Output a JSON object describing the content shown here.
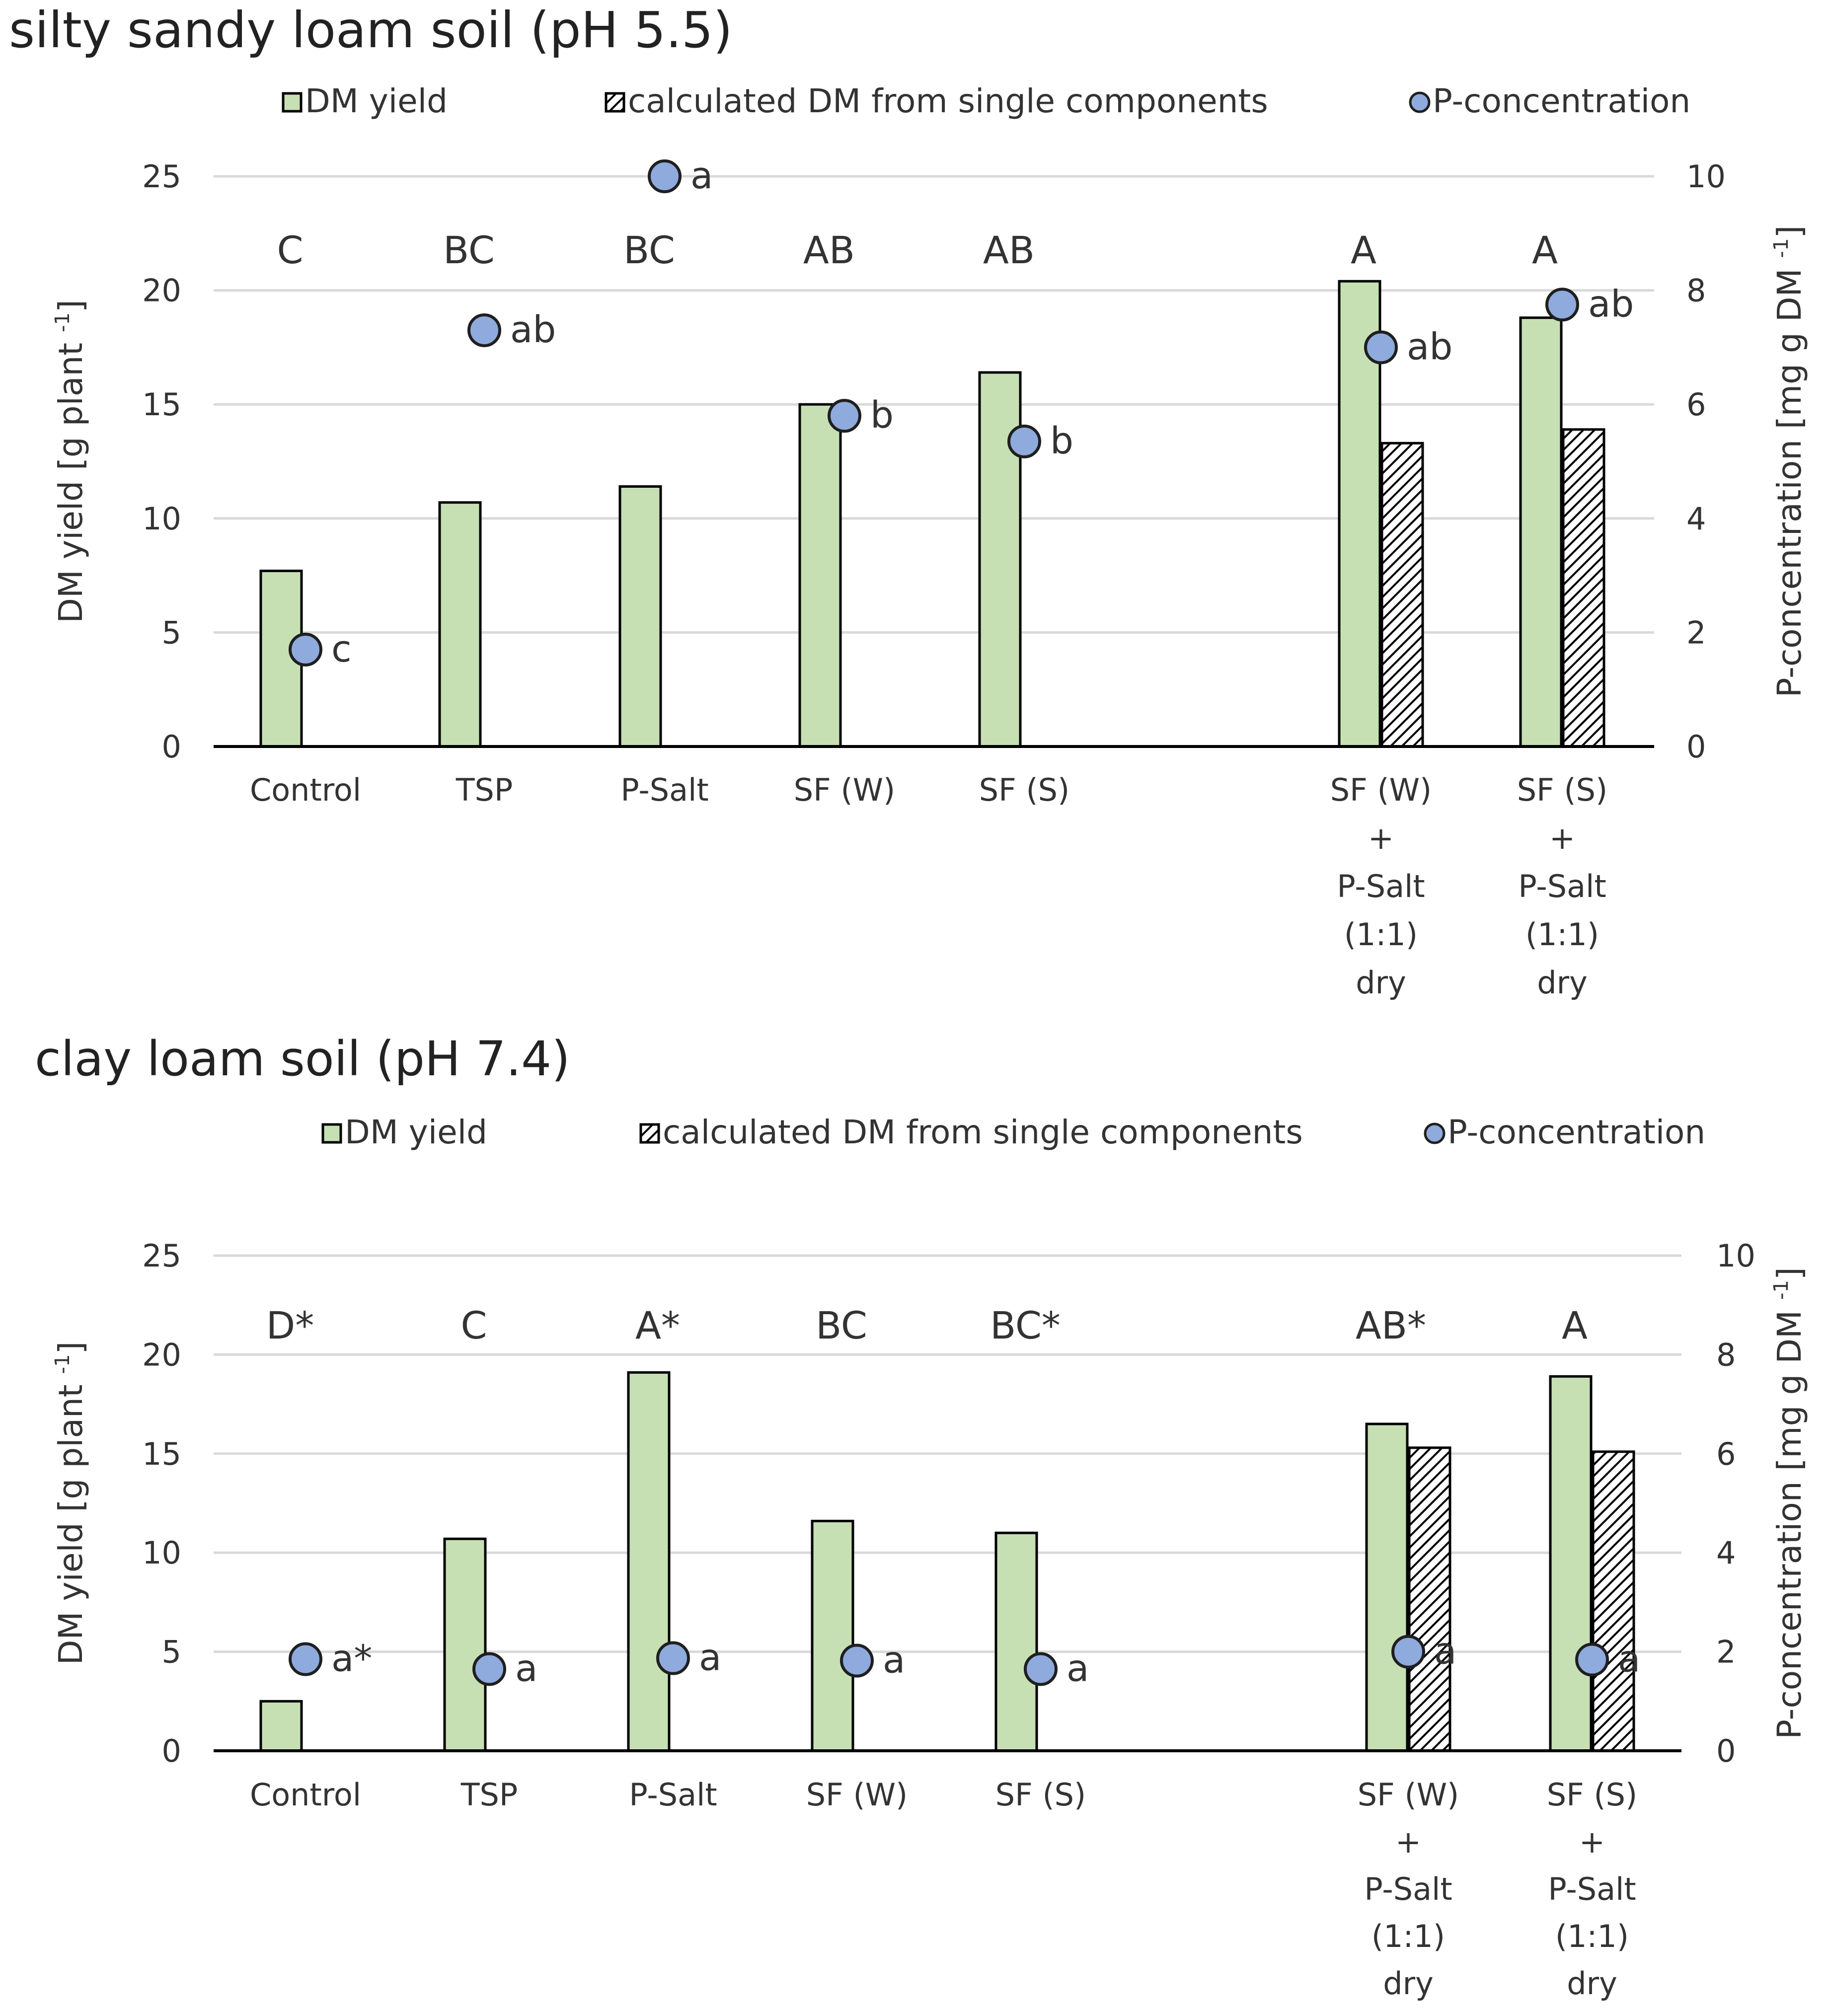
{
  "colors": {
    "bar": "#c6e0b4",
    "bar_stroke": "#000000",
    "hatch": "#000000",
    "point": "#8faadc",
    "grid": "#d9d9d9",
    "text": "#333333"
  },
  "chart_data": [
    {
      "type": "bar",
      "title": "silty sandy loam soil (pH 5.5)",
      "legend": {
        "position": "top",
        "entries": [
          "DM yield",
          "calculated DM from single components",
          "P-concentration"
        ]
      },
      "ylabel": "DM yield [g plant",
      "ylabel_sup": "-1",
      "ylabel_end": "]",
      "y2label": "P-concentration [mg g DM",
      "y2label_sup": "-1",
      "y2label_end": "]",
      "ylim": [
        0,
        25
      ],
      "y2lim": [
        0,
        10
      ],
      "yticks": [
        "0",
        "5",
        "10",
        "15",
        "20",
        "25"
      ],
      "y2ticks": [
        "0",
        "2",
        "4",
        "6",
        "8",
        "10"
      ],
      "grid": true,
      "categories": [
        [
          "Control"
        ],
        [
          "TSP"
        ],
        [
          "P-Salt"
        ],
        [
          "SF (W)"
        ],
        [
          "SF (S)"
        ],
        [
          "SF (W)",
          "+",
          "P-Salt",
          "(1:1)",
          "dry"
        ],
        [
          "SF (S)",
          "+",
          "P-Salt",
          "(1:1)",
          "dry"
        ]
      ],
      "series": [
        {
          "name": "DM yield",
          "axis": "left",
          "values": [
            7.7,
            10.7,
            11.4,
            15.0,
            16.4,
            20.4,
            18.8
          ]
        },
        {
          "name": "calculated DM from single components",
          "axis": "left",
          "values": [
            null,
            null,
            null,
            null,
            null,
            13.3,
            13.9
          ]
        },
        {
          "name": "P-concentration",
          "axis": "right",
          "values": [
            1.7,
            7.3,
            10.0,
            5.8,
            5.35,
            7.0,
            7.75
          ]
        }
      ],
      "bar_letters": [
        "C",
        "BC",
        "BC",
        "AB",
        "AB",
        "A",
        "A"
      ],
      "point_letters": [
        "c",
        "ab",
        "a",
        "b",
        "b",
        "ab",
        "ab"
      ]
    },
    {
      "type": "bar",
      "title": "clay loam soil (pH 7.4)",
      "legend": {
        "position": "top",
        "entries": [
          "DM yield",
          "calculated DM from single components",
          "P-concentration"
        ]
      },
      "ylabel": "DM yield [g plant",
      "ylabel_sup": "-1",
      "ylabel_end": "]",
      "y2label": "P-concentration [mg g DM",
      "y2label_sup": "-1",
      "y2label_end": "]",
      "ylim": [
        0,
        25
      ],
      "y2lim": [
        0,
        10
      ],
      "yticks": [
        "0",
        "5",
        "10",
        "15",
        "20",
        "25"
      ],
      "y2ticks": [
        "0",
        "2",
        "4",
        "6",
        "8",
        "10"
      ],
      "grid": true,
      "categories": [
        [
          "Control"
        ],
        [
          "TSP"
        ],
        [
          "P-Salt"
        ],
        [
          "SF (W)"
        ],
        [
          "SF (S)"
        ],
        [
          "SF (W)",
          "+",
          "P-Salt",
          "(1:1)",
          "dry"
        ],
        [
          "SF (S)",
          "+",
          "P-Salt",
          "(1:1)",
          "dry"
        ]
      ],
      "series": [
        {
          "name": "DM yield",
          "axis": "left",
          "values": [
            2.5,
            10.7,
            19.1,
            11.6,
            11.0,
            16.5,
            18.9
          ]
        },
        {
          "name": "calculated DM from single components",
          "axis": "left",
          "values": [
            null,
            null,
            null,
            null,
            null,
            15.3,
            15.1
          ]
        },
        {
          "name": "P-concentration",
          "axis": "right",
          "values": [
            1.85,
            1.65,
            1.87,
            1.82,
            1.65,
            2.0,
            1.84
          ]
        }
      ],
      "bar_letters": [
        "D*",
        "C",
        "A*",
        "BC",
        "BC*",
        "AB*",
        "A"
      ],
      "point_letters": [
        "a*",
        "a",
        "a",
        "a",
        "a",
        "a",
        "a"
      ]
    }
  ]
}
